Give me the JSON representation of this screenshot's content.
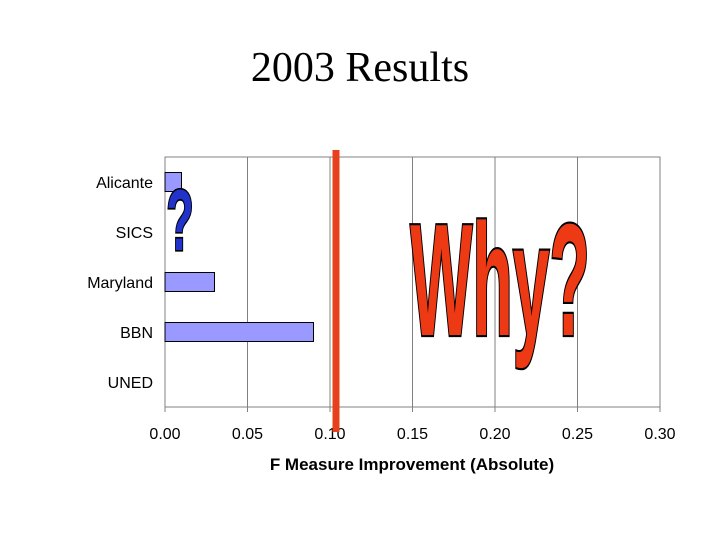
{
  "slide": {
    "title": "2003 Results"
  },
  "chart_data": {
    "type": "bar",
    "orientation": "horizontal",
    "categories": [
      "Alicante",
      "SICS",
      "Maryland",
      "BBN",
      "UNED"
    ],
    "values": [
      0.01,
      0.0,
      0.03,
      0.09,
      0.0
    ],
    "xlabel": "F Measure Improvement (Absolute)",
    "ylabel": "",
    "xlim": [
      0,
      0.3
    ],
    "xticks": [
      "0.00",
      "0.05",
      "0.10",
      "0.15",
      "0.20",
      "0.25",
      "0.30"
    ],
    "grid": true,
    "bar_color": "#9999ff",
    "marker_line": {
      "x": 0.1,
      "color": "#e8401c"
    }
  },
  "annotations": {
    "question_mark": {
      "text": "?",
      "color": "#2233cc"
    },
    "why": {
      "text": "Why?",
      "color": "#ee3a14"
    }
  }
}
